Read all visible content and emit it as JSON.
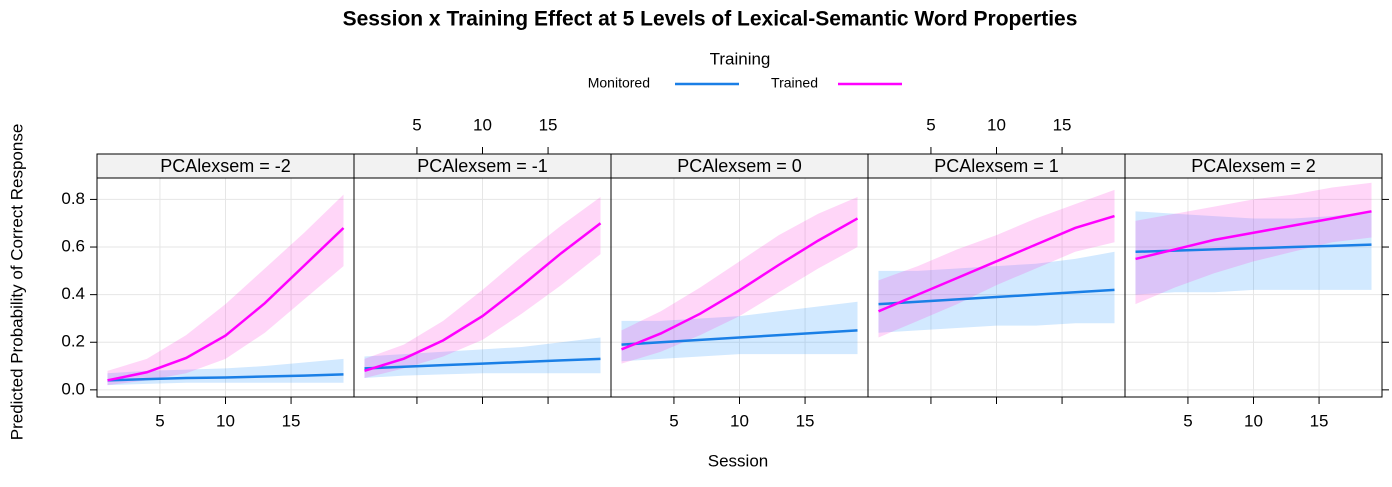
{
  "chart_data": {
    "type": "line",
    "title": "Session x Training Effect at 5 Levels of Lexical-Semantic Word Properties",
    "legend_title": "Training",
    "xlabel": "Session",
    "ylabel": "Predicted Probability of Correct Response",
    "series": [
      {
        "name": "Monitored",
        "color": "#1a7fe6",
        "band_color": "#1e90ff"
      },
      {
        "name": "Trained",
        "color": "#ff00ff",
        "band_color": "#ff33dd"
      }
    ],
    "x": [
      1,
      4,
      7,
      10,
      13,
      16,
      19
    ],
    "xlim": [
      0.2,
      19.8
    ],
    "xticks": [
      5,
      10,
      15
    ],
    "ylim": [
      -0.03,
      0.89
    ],
    "yticks": [
      {
        "value": 0,
        "label": "0.0"
      },
      {
        "value": 0.2,
        "label": "0.2"
      },
      {
        "value": 0.4,
        "label": "0.4"
      },
      {
        "value": 0.6,
        "label": "0.6"
      },
      {
        "value": 0.8,
        "label": "0.8"
      }
    ],
    "grid": true,
    "panels": [
      {
        "strip": "PCAlexsem = -2",
        "series": [
          {
            "values": [
              0.04,
              0.045,
              0.05,
              0.052,
              0.056,
              0.06,
              0.065
            ],
            "lower": [
              0.02,
              0.025,
              0.03,
              0.03,
              0.03,
              0.03,
              0.03
            ],
            "upper": [
              0.07,
              0.08,
              0.085,
              0.09,
              0.1,
              0.115,
              0.13
            ]
          },
          {
            "values": [
              0.04,
              0.074,
              0.134,
              0.228,
              0.364,
              0.522,
              0.68
            ],
            "lower": [
              0.02,
              0.04,
              0.07,
              0.13,
              0.24,
              0.38,
              0.52
            ],
            "upper": [
              0.08,
              0.13,
              0.23,
              0.36,
              0.51,
              0.66,
              0.82
            ]
          }
        ]
      },
      {
        "strip": "PCAlexsem = -1",
        "series": [
          {
            "values": [
              0.09,
              0.097,
              0.104,
              0.11,
              0.117,
              0.124,
              0.13
            ],
            "lower": [
              0.05,
              0.06,
              0.065,
              0.07,
              0.07,
              0.07,
              0.07
            ],
            "upper": [
              0.14,
              0.15,
              0.16,
              0.17,
              0.18,
              0.2,
              0.22
            ]
          },
          {
            "values": [
              0.08,
              0.131,
              0.208,
              0.31,
              0.438,
              0.574,
              0.7
            ],
            "lower": [
              0.05,
              0.09,
              0.14,
              0.21,
              0.32,
              0.44,
              0.57
            ],
            "upper": [
              0.13,
              0.19,
              0.29,
              0.42,
              0.56,
              0.69,
              0.81
            ]
          }
        ]
      },
      {
        "strip": "PCAlexsem = 0",
        "series": [
          {
            "values": [
              0.19,
              0.2,
              0.21,
              0.22,
              0.23,
              0.24,
              0.25
            ],
            "lower": [
              0.12,
              0.13,
              0.14,
              0.15,
              0.15,
              0.15,
              0.15
            ],
            "upper": [
              0.29,
              0.29,
              0.3,
              0.31,
              0.33,
              0.35,
              0.37
            ]
          },
          {
            "values": [
              0.17,
              0.237,
              0.32,
              0.418,
              0.525,
              0.627,
              0.72
            ],
            "lower": [
              0.11,
              0.16,
              0.23,
              0.31,
              0.41,
              0.51,
              0.6
            ],
            "upper": [
              0.25,
              0.33,
              0.43,
              0.54,
              0.65,
              0.74,
              0.81
            ]
          }
        ]
      },
      {
        "strip": "PCAlexsem = 1",
        "series": [
          {
            "values": [
              0.36,
              0.37,
              0.38,
              0.39,
              0.4,
              0.41,
              0.42
            ],
            "lower": [
              0.24,
              0.25,
              0.26,
              0.27,
              0.27,
              0.28,
              0.28
            ],
            "upper": [
              0.5,
              0.5,
              0.51,
              0.52,
              0.53,
              0.55,
              0.58
            ]
          },
          {
            "values": [
              0.33,
              0.4,
              0.47,
              0.54,
              0.61,
              0.68,
              0.73
            ],
            "lower": [
              0.22,
              0.29,
              0.36,
              0.44,
              0.51,
              0.58,
              0.62
            ],
            "upper": [
              0.46,
              0.52,
              0.59,
              0.65,
              0.72,
              0.78,
              0.84
            ]
          }
        ]
      },
      {
        "strip": "PCAlexsem = 2",
        "series": [
          {
            "values": [
              0.58,
              0.585,
              0.59,
              0.595,
              0.6,
              0.605,
              0.61
            ],
            "lower": [
              0.4,
              0.41,
              0.41,
              0.42,
              0.42,
              0.42,
              0.42
            ],
            "upper": [
              0.75,
              0.74,
              0.73,
              0.72,
              0.72,
              0.73,
              0.75
            ]
          },
          {
            "values": [
              0.55,
              0.59,
              0.63,
              0.66,
              0.69,
              0.72,
              0.75
            ],
            "lower": [
              0.36,
              0.43,
              0.49,
              0.54,
              0.58,
              0.62,
              0.64
            ],
            "upper": [
              0.71,
              0.74,
              0.77,
              0.8,
              0.82,
              0.85,
              0.87
            ]
          }
        ]
      }
    ]
  }
}
